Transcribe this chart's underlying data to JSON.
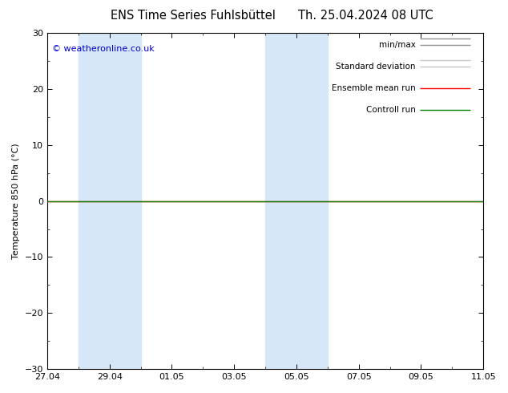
{
  "title_left": "ENS Time Series Fuhlsbüttel",
  "title_right": "Th. 25.04.2024 08 UTC",
  "ylabel": "Temperature 850 hPa (°C)",
  "copyright_text": "© weatheronline.co.uk",
  "ylim": [
    -30,
    30
  ],
  "yticks": [
    -30,
    -20,
    -10,
    0,
    10,
    20,
    30
  ],
  "x_ticks_labels": [
    "27.04",
    "29.04",
    "01.05",
    "03.05",
    "05.05",
    "07.05",
    "09.05",
    "11.05"
  ],
  "x_ticks_positions": [
    0,
    2,
    4,
    6,
    8,
    10,
    12,
    14
  ],
  "total_days": 14,
  "shaded_bands": [
    {
      "x_start": 1,
      "x_end": 3
    },
    {
      "x_start": 7,
      "x_end": 9
    }
  ],
  "shaded_color": "#d6e8f7",
  "green_line_y": 0,
  "red_line_y": 0,
  "green_color": "#008000",
  "red_color": "#ff0000",
  "copyright_color": "#0000cc",
  "background_color": "#ffffff",
  "legend_entries": [
    "min/max",
    "Standard deviation",
    "Ensemble mean run",
    "Controll run"
  ],
  "legend_line_colors": [
    "#909090",
    "#c8c8c8",
    "#ff0000",
    "#008000"
  ],
  "title_fontsize": 10.5,
  "tick_fontsize": 8,
  "ylabel_fontsize": 8,
  "legend_fontsize": 7.5,
  "copyright_fontsize": 8
}
